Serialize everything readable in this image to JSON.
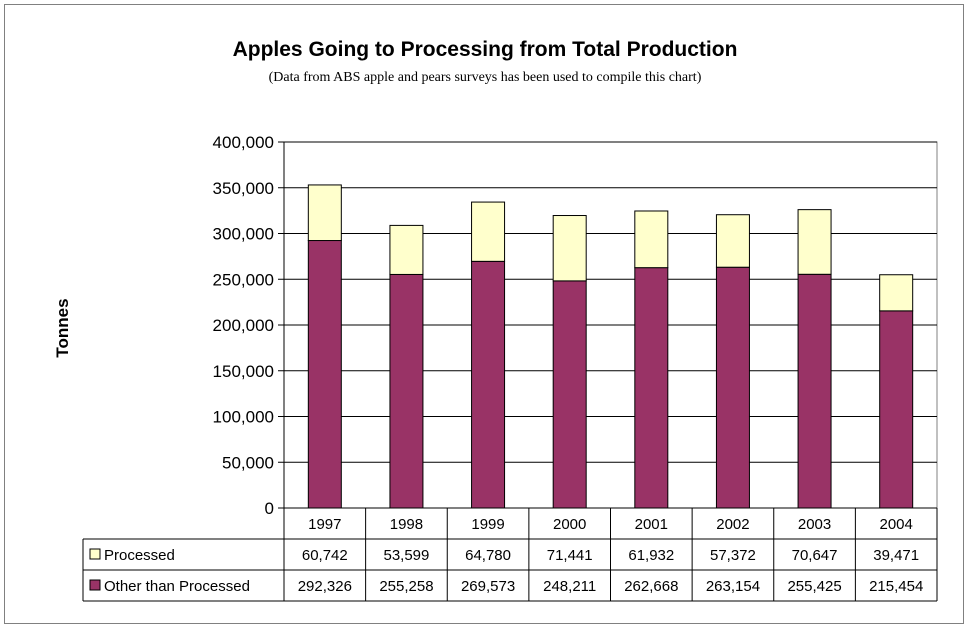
{
  "chart_data": {
    "type": "bar",
    "stacked": true,
    "title": "Apples Going to Processing from Total Production",
    "subtitle": "(Data from ABS apple and pears surveys has been used to compile this chart)",
    "ylabel": "Tonnes",
    "ylim": [
      0,
      400000
    ],
    "yticks": [
      0,
      50000,
      100000,
      150000,
      200000,
      250000,
      300000,
      350000,
      400000
    ],
    "ytick_labels": [
      "0",
      "50,000",
      "100,000",
      "150,000",
      "200,000",
      "250,000",
      "300,000",
      "350,000",
      "400,000"
    ],
    "categories": [
      "1997",
      "1998",
      "1999",
      "2000",
      "2001",
      "2002",
      "2003",
      "2004"
    ],
    "grid": true,
    "legend": "data-table",
    "series": [
      {
        "name": "Other than Processed",
        "color": "#993366",
        "values": [
          292326,
          255258,
          269573,
          248211,
          262668,
          263154,
          255425,
          215454
        ],
        "labels": [
          "292,326",
          "255,258",
          "269,573",
          "248,211",
          "262,668",
          "263,154",
          "255,425",
          "215,454"
        ]
      },
      {
        "name": "Processed",
        "color": "#ffffcc",
        "values": [
          60742,
          53599,
          64780,
          71441,
          61932,
          57372,
          70647,
          39471
        ],
        "labels": [
          "60,742",
          "53,599",
          "64,780",
          "71,441",
          "61,932",
          "57,372",
          "70,647",
          "39,471"
        ]
      }
    ]
  }
}
